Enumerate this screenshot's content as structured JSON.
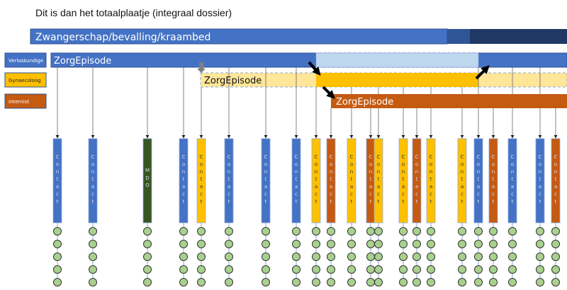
{
  "title": "Dit is dan het totaalplaatje (integraal dossier)",
  "top_bar": {
    "label": "Zwangerschap/bevalling/kraambed"
  },
  "colors": {
    "verloskundige": "#4472c4",
    "gynaecoloog": "#ffc000",
    "internist": "#c55a11",
    "mdo": "#375623",
    "circle": "#a9d18e",
    "light_blue": "#bdd7ee",
    "light_yellow": "#ffe699",
    "dark_blue_1": "#2f5597",
    "dark_blue_2": "#1f3864"
  },
  "legend": [
    {
      "key": "verloskundige",
      "label": "Verloskundige"
    },
    {
      "key": "gynaecoloog",
      "label": "Gynaecoloog"
    },
    {
      "key": "internist",
      "label": "Internist"
    }
  ],
  "episodes": [
    {
      "key": "verloskundige",
      "label": "ZorgEpisode"
    },
    {
      "key": "gynaecoloog",
      "label": "ZorgEpisode"
    },
    {
      "key": "internist",
      "label": "ZorgEpisode"
    }
  ],
  "contact_label": "Contact",
  "mdo_label": "MDO",
  "contacts": [
    "verloskundige",
    "verloskundige",
    "mdo",
    "verloskundige",
    "gynaecoloog",
    "verloskundige",
    "verloskundige",
    "verloskundige",
    "gynaecoloog",
    "internist",
    "gynaecoloog",
    "internist",
    "gynaecoloog",
    "gynaecoloog",
    "internist",
    "gynaecoloog",
    "gynaecoloog",
    "verloskundige",
    "internist",
    "verloskundige",
    "verloskundige",
    "internist"
  ],
  "circles_per_contact": 5
}
